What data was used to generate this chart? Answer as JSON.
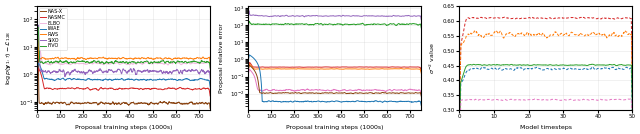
{
  "legend_labels": [
    "NAS-X",
    "NASMC",
    "ELBO",
    "IWAE",
    "RWS",
    "SIXO",
    "FIVO"
  ],
  "colors": {
    "NAS-X": "#8B4513",
    "NASMC": "#d62728",
    "ELBO": "#e377c2",
    "IWAE": "#1f77b4",
    "RWS": "#ff7f0e",
    "SIXO": "#9467bd",
    "FIVO": "#2ca02c"
  },
  "plot1": {
    "xlabel": "Proposal training steps (1000s)",
    "ylabel": "log p(y_{1:T}) - L_{128}",
    "xlim": [
      0,
      750
    ],
    "ylim": [
      0.05,
      200
    ]
  },
  "plot2": {
    "xlabel": "Proposal training steps (1000s)",
    "ylabel": "Proposal relative error",
    "xlim": [
      0,
      750
    ]
  },
  "plot3": {
    "xlabel": "Model timesteps",
    "ylabel": "sigma^{-2} value",
    "xlim": [
      0,
      50
    ],
    "ylim": [
      0.3,
      0.65
    ]
  }
}
